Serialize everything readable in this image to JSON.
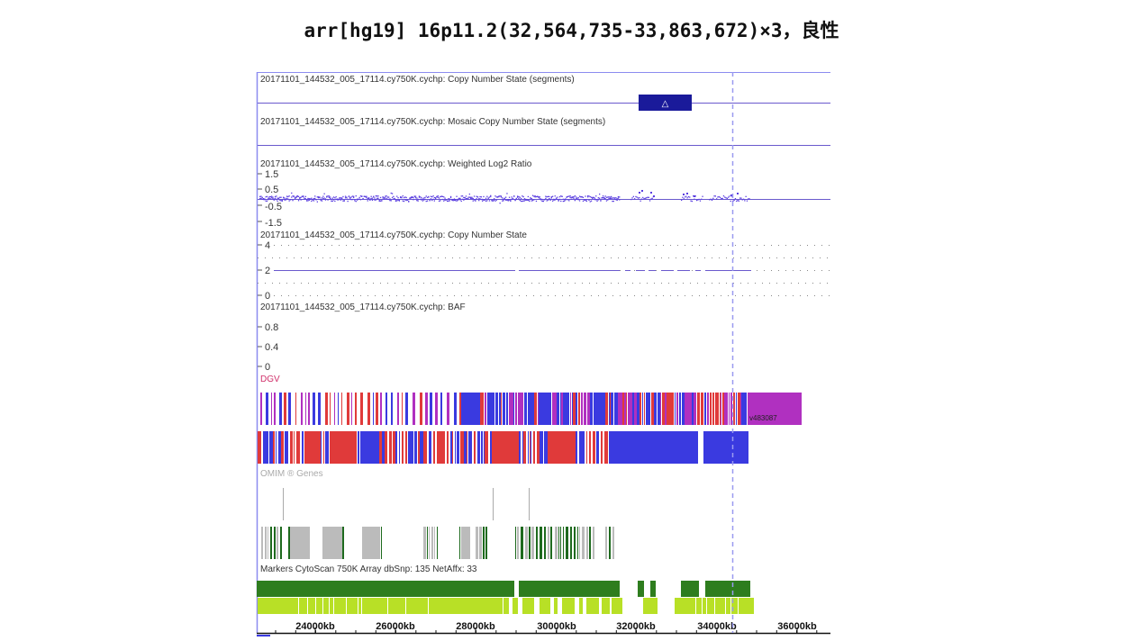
{
  "heading": "arr[hg19] 16p11.2(32,564,735-33,863,672)×3，良性",
  "tracks": {
    "cn_segments": "20171101_144532_005_17114.cy750K.cychp: Copy Number State (segments)",
    "gain_segment_symbol": "△",
    "mosaic_segments": "20171101_144532_005_17114.cy750K.cychp: Mosaic Copy Number State (segments)",
    "log2_ratio": "20171101_144532_005_17114.cy750K.cychp: Weighted Log2 Ratio",
    "log2_ticks": [
      "1.5",
      "0.5",
      "-0.5",
      "-1.5"
    ],
    "cn_state": "20171101_144532_005_17114.cy750K.cychp: Copy Number State",
    "cn_ticks": [
      "4",
      "2",
      "0"
    ],
    "baf": "20171101_144532_005_17114.cy750K.cychp: BAF",
    "baf_ticks": [
      "0.8",
      "0.4",
      "0"
    ],
    "dgv": "DGV",
    "dgv_variant_id": "v483087",
    "omim": "OMIM ® Genes",
    "markers": "Markers CytoScan 750K Array dbSnp: 135 NetAffx: 33"
  },
  "axis": {
    "ticks": [
      "24000kb",
      "26000kb",
      "28000kb",
      "30000kb",
      "32000kb",
      "34000kb",
      "36000kb"
    ]
  },
  "colors": {
    "gain_segment": "#1a1a9a",
    "track_line": "#6a5acd",
    "log2_points": "#5a3ee0",
    "dgv_gain": "#3a3ae0",
    "dgv_loss": "#e03a3a",
    "dgv_mixed": "#b030c0",
    "omim_gene": "#bbbbbb",
    "omim_disease": "#1e6a1e",
    "marker_dark": "#2e7d1e",
    "marker_light": "#b8e026",
    "cursor": "#9a9af0"
  }
}
